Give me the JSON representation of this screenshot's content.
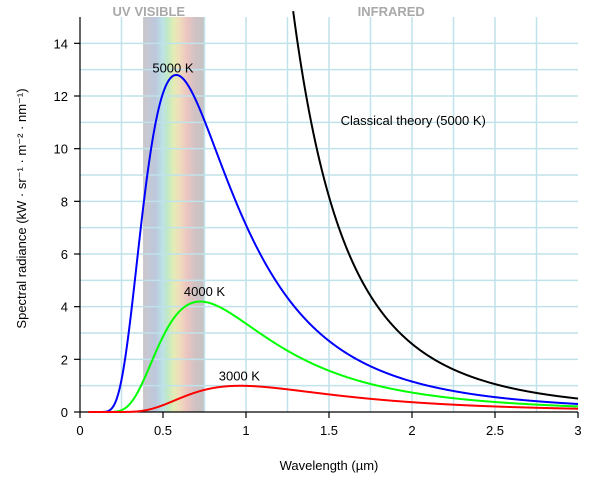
{
  "chart_data": {
    "type": "line",
    "title": "",
    "xlabel": "Wavelength (µm)",
    "ylabel": "Spectral radiance (kW · sr⁻¹ · m⁻² · nm⁻¹)",
    "xlim": [
      0,
      3
    ],
    "ylim": [
      0,
      15
    ],
    "x_ticks": [
      0,
      0.5,
      1,
      1.5,
      2,
      2.5,
      3
    ],
    "x_tick_labels": [
      "0",
      "0.5",
      "1",
      "1.5",
      "2",
      "2.5",
      "3"
    ],
    "y_ticks": [
      0,
      2,
      4,
      6,
      8,
      10,
      12,
      14
    ],
    "y_tick_labels": [
      "0",
      "2",
      "4",
      "6",
      "8",
      "10",
      "12",
      "14"
    ],
    "grid": true,
    "regions": [
      {
        "label": "UV",
        "x_start": 0.0,
        "x_end": 0.38
      },
      {
        "label": "VISIBLE",
        "x_start": 0.38,
        "x_end": 0.75
      },
      {
        "label": "INFRARED",
        "x_start": 0.75,
        "x_end": 3.0
      }
    ],
    "series": [
      {
        "name": "5000 K",
        "color": "#0000ff",
        "kind": "planck",
        "temperature_K": 5000,
        "label_at": [
          0.56,
          12.9
        ]
      },
      {
        "name": "4000 K",
        "color": "#00ff00",
        "kind": "planck",
        "temperature_K": 4000,
        "label_at": [
          0.75,
          4.4
        ]
      },
      {
        "name": "3000 K",
        "color": "#ff0000",
        "kind": "planck",
        "temperature_K": 3000,
        "label_at": [
          0.96,
          1.2
        ]
      },
      {
        "name": "Classical theory (5000 K)",
        "color": "#000000",
        "kind": "rayleigh-jeans",
        "temperature_K": 5000,
        "label_at": [
          1.57,
          10.9
        ]
      }
    ]
  }
}
